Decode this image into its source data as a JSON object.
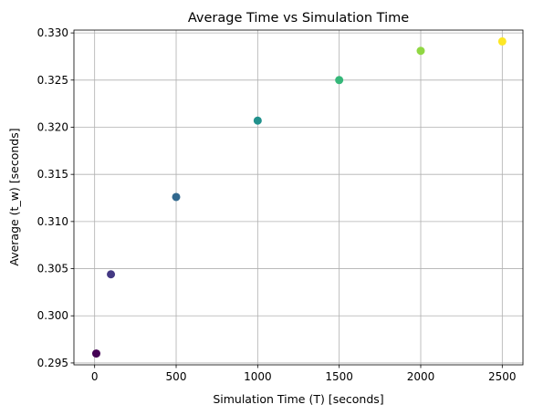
{
  "chart_data": {
    "type": "scatter",
    "title": "Average Time vs Simulation Time",
    "xlabel": "Simulation Time (T) [seconds]",
    "ylabel": "Average (t_w) [seconds]",
    "xlim": [
      -127,
      2627
    ],
    "ylim": [
      0.2948,
      0.3303
    ],
    "xticks": [
      0,
      500,
      1000,
      1500,
      2000,
      2500
    ],
    "xtick_labels": [
      "0",
      "500",
      "1000",
      "1500",
      "2000",
      "2500"
    ],
    "yticks": [
      0.295,
      0.3,
      0.305,
      0.31,
      0.315,
      0.32,
      0.325,
      0.33
    ],
    "ytick_labels": [
      "0.295",
      "0.300",
      "0.305",
      "0.310",
      "0.315",
      "0.320",
      "0.325",
      "0.330"
    ],
    "grid": true,
    "colormap": "viridis",
    "x": [
      10,
      100,
      500,
      1000,
      1500,
      2000,
      2500
    ],
    "y": [
      0.296,
      0.3044,
      0.3126,
      0.3207,
      0.325,
      0.3281,
      0.3291
    ],
    "colors": [
      "#440154",
      "#443983",
      "#31688e",
      "#21918c",
      "#35b779",
      "#90d743",
      "#fde725"
    ]
  }
}
